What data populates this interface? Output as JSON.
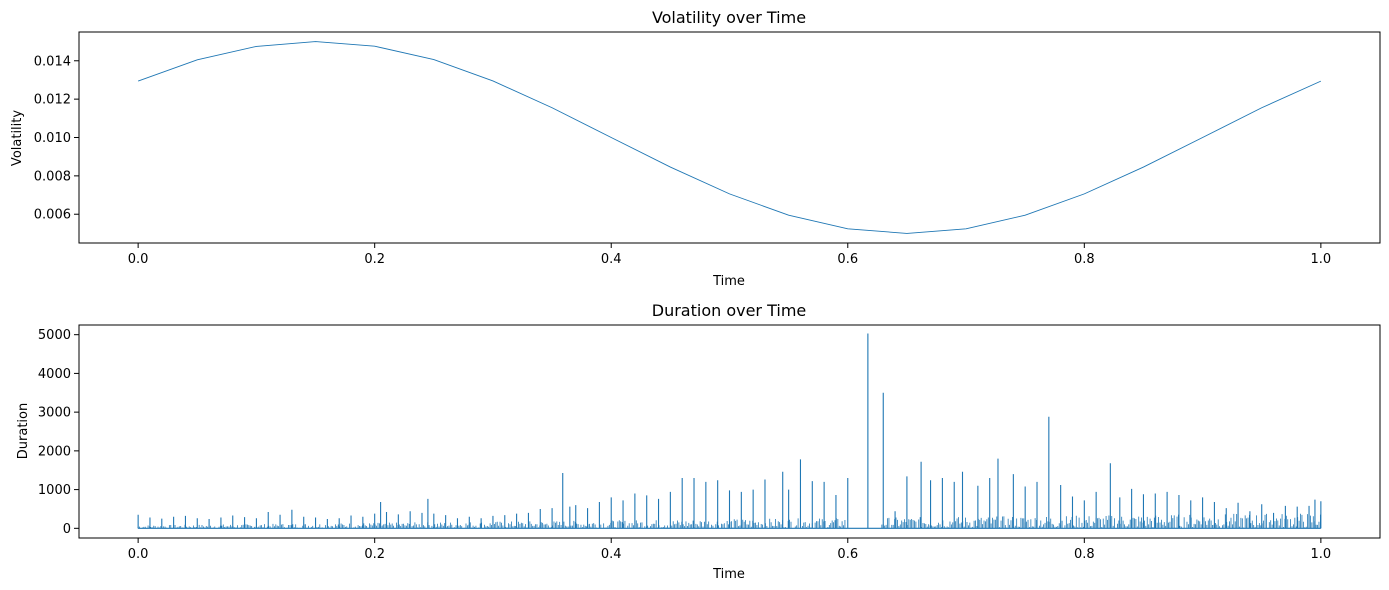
{
  "chart_data": [
    {
      "type": "line",
      "title": "Volatility over Time",
      "xlabel": "Time",
      "ylabel": "Volatility",
      "xlim": [
        -0.05,
        1.05
      ],
      "ylim": [
        0.0045,
        0.0155
      ],
      "xticks": [
        0.0,
        0.2,
        0.4,
        0.6,
        0.8,
        1.0
      ],
      "xtick_labels": [
        "0.0",
        "0.2",
        "0.4",
        "0.6",
        "0.8",
        "1.0"
      ],
      "yticks": [
        0.006,
        0.008,
        0.01,
        0.012,
        0.014
      ],
      "ytick_labels": [
        "0.006",
        "0.008",
        "0.010",
        "0.012",
        "0.014"
      ],
      "grid": false,
      "color": "#1f77b4",
      "series": [
        {
          "x": [
            0.0,
            0.05,
            0.1,
            0.15,
            0.2,
            0.25,
            0.3,
            0.35,
            0.4,
            0.45,
            0.5,
            0.55,
            0.6,
            0.65,
            0.7,
            0.75,
            0.8,
            0.85,
            0.9,
            0.95,
            1.0
          ],
          "values": [
            0.01294,
            0.01405,
            0.01475,
            0.015,
            0.01476,
            0.01406,
            0.01295,
            0.01155,
            0.01,
            0.00846,
            0.00706,
            0.00595,
            0.00524,
            0.005,
            0.00524,
            0.00595,
            0.00706,
            0.00846,
            0.01,
            0.01155,
            0.01294
          ]
        }
      ]
    },
    {
      "type": "line",
      "title": "Duration over Time",
      "xlabel": "Time",
      "ylabel": "Duration",
      "xlim": [
        -0.05,
        1.05
      ],
      "ylim": [
        -250,
        5250
      ],
      "xticks": [
        0.0,
        0.2,
        0.4,
        0.6,
        0.8,
        1.0
      ],
      "xtick_labels": [
        "0.0",
        "0.2",
        "0.4",
        "0.6",
        "0.8",
        "1.0"
      ],
      "yticks": [
        0,
        1000,
        2000,
        3000,
        4000,
        5000
      ],
      "ytick_labels": [
        "0",
        "1000",
        "2000",
        "3000",
        "4000",
        "5000"
      ],
      "grid": false,
      "color": "#1f77b4",
      "series": [
        {
          "x": [
            0.0,
            0.01,
            0.02,
            0.03,
            0.04,
            0.05,
            0.06,
            0.07,
            0.08,
            0.09,
            0.1,
            0.11,
            0.12,
            0.13,
            0.14,
            0.15,
            0.16,
            0.17,
            0.18,
            0.19,
            0.2,
            0.205,
            0.21,
            0.22,
            0.23,
            0.24,
            0.245,
            0.25,
            0.26,
            0.27,
            0.28,
            0.29,
            0.3,
            0.31,
            0.32,
            0.33,
            0.34,
            0.35,
            0.359,
            0.365,
            0.37,
            0.38,
            0.39,
            0.4,
            0.41,
            0.42,
            0.43,
            0.44,
            0.45,
            0.46,
            0.47,
            0.48,
            0.49,
            0.5,
            0.51,
            0.52,
            0.53,
            0.545,
            0.55,
            0.56,
            0.57,
            0.58,
            0.59,
            0.6,
            0.605,
            0.61,
            0.617,
            0.62,
            0.625,
            0.63,
            0.64,
            0.65,
            0.662,
            0.67,
            0.68,
            0.69,
            0.697,
            0.71,
            0.72,
            0.727,
            0.74,
            0.75,
            0.76,
            0.77,
            0.78,
            0.79,
            0.8,
            0.81,
            0.822,
            0.83,
            0.84,
            0.85,
            0.86,
            0.87,
            0.88,
            0.89,
            0.9,
            0.91,
            0.92,
            0.93,
            0.94,
            0.95,
            0.96,
            0.97,
            0.98,
            0.99,
            0.995,
            1.0
          ],
          "values": [
            350,
            280,
            250,
            300,
            320,
            260,
            240,
            280,
            330,
            290,
            260,
            420,
            350,
            480,
            300,
            280,
            240,
            260,
            330,
            300,
            380,
            680,
            420,
            360,
            440,
            400,
            760,
            380,
            340,
            260,
            300,
            260,
            320,
            340,
            380,
            400,
            500,
            520,
            1430,
            560,
            600,
            520,
            680,
            800,
            720,
            900,
            850,
            760,
            940,
            1300,
            1300,
            1200,
            1240,
            980,
            940,
            1000,
            1260,
            1460,
            1000,
            1780,
            1220,
            1200,
            860,
            1300,
            10,
            10,
            5030,
            10,
            10,
            3500,
            440,
            1340,
            1720,
            1240,
            1300,
            1200,
            1460,
            1100,
            1300,
            1800,
            1400,
            1080,
            1200,
            2880,
            1120,
            820,
            720,
            940,
            1680,
            800,
            1020,
            880,
            900,
            940,
            860,
            720,
            800,
            680,
            520,
            660,
            440,
            620,
            400,
            580,
            560,
            580,
            740,
            700
          ]
        }
      ]
    }
  ]
}
